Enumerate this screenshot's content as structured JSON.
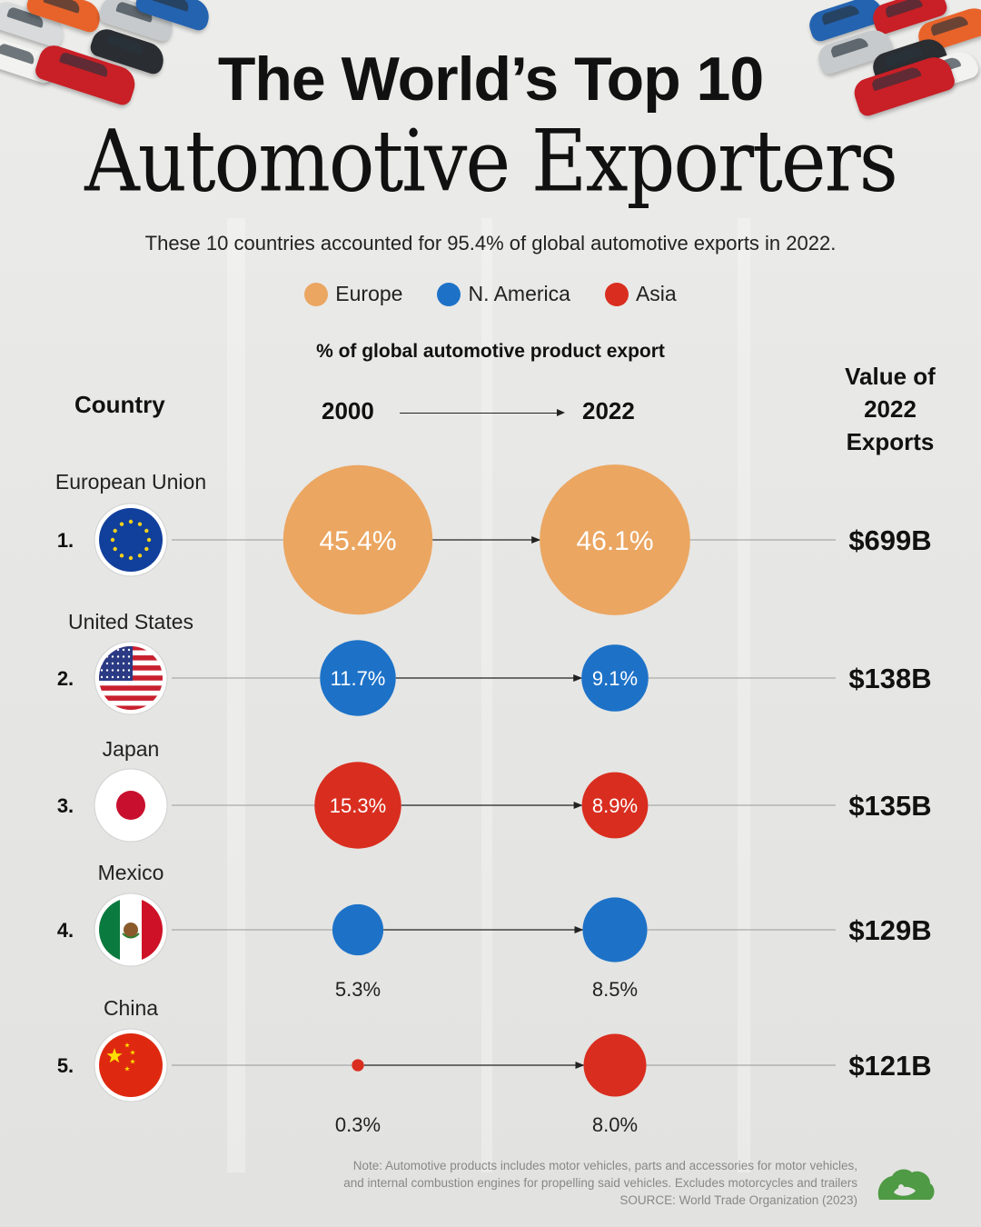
{
  "header": {
    "title_line1": "The World’s Top 10",
    "title_line2": "Automotive Exporters",
    "subtitle": "These 10 countries accounted for 95.4% of global automotive exports in 2022."
  },
  "legend": [
    {
      "label": "Europe",
      "color": "#eba661"
    },
    {
      "label": "N. America",
      "color": "#1d72c8"
    },
    {
      "label": "Asia",
      "color": "#d92e1f"
    }
  ],
  "columns": {
    "country": "Country",
    "axis_title": "% of global automotive product export",
    "year_start": "2000",
    "year_end": "2022",
    "value_header_lines": [
      "Value of",
      "2022",
      "Exports"
    ]
  },
  "chart_data": {
    "type": "scatter",
    "title": "",
    "unit": "% of global automotive product export",
    "x": [
      "2000",
      "2022"
    ],
    "rows": [
      {
        "rank": "1.",
        "country": "European Union",
        "region": "Europe",
        "share_2000": 45.4,
        "share_2022": 46.1,
        "label_2000": "45.4%",
        "label_2022": "46.1%",
        "value_2022": "$699B",
        "flag": "eu-flag-icon"
      },
      {
        "rank": "2.",
        "country": "United States",
        "region": "N. America",
        "share_2000": 11.7,
        "share_2022": 9.1,
        "label_2000": "11.7%",
        "label_2022": "9.1%",
        "value_2022": "$138B",
        "flag": "us-flag-icon"
      },
      {
        "rank": "3.",
        "country": "Japan",
        "region": "Asia",
        "share_2000": 15.3,
        "share_2022": 8.9,
        "label_2000": "15.3%",
        "label_2022": "8.9%",
        "value_2022": "$135B",
        "flag": "japan-flag-icon"
      },
      {
        "rank": "4.",
        "country": "Mexico",
        "region": "N. America",
        "share_2000": 5.3,
        "share_2022": 8.5,
        "label_2000": "5.3%",
        "label_2022": "8.5%",
        "value_2022": "$129B",
        "flag": "mexico-flag-icon"
      },
      {
        "rank": "5.",
        "country": "China",
        "region": "Asia",
        "share_2000": 0.3,
        "share_2022": 8.0,
        "label_2000": "0.3%",
        "label_2022": "8.0%",
        "value_2022": "$121B",
        "flag": "china-flag-icon"
      }
    ]
  },
  "footer": {
    "note_line1": "Note: Automotive products includes motor vehicles, parts and accessories for motor vehicles,",
    "note_line2": "and internal combustion engines for propelling said vehicles. Excludes motorcycles and trailers",
    "source": "SOURCE: World Trade Organization (2023)",
    "logo": "visual-capitalist-logo-icon"
  }
}
